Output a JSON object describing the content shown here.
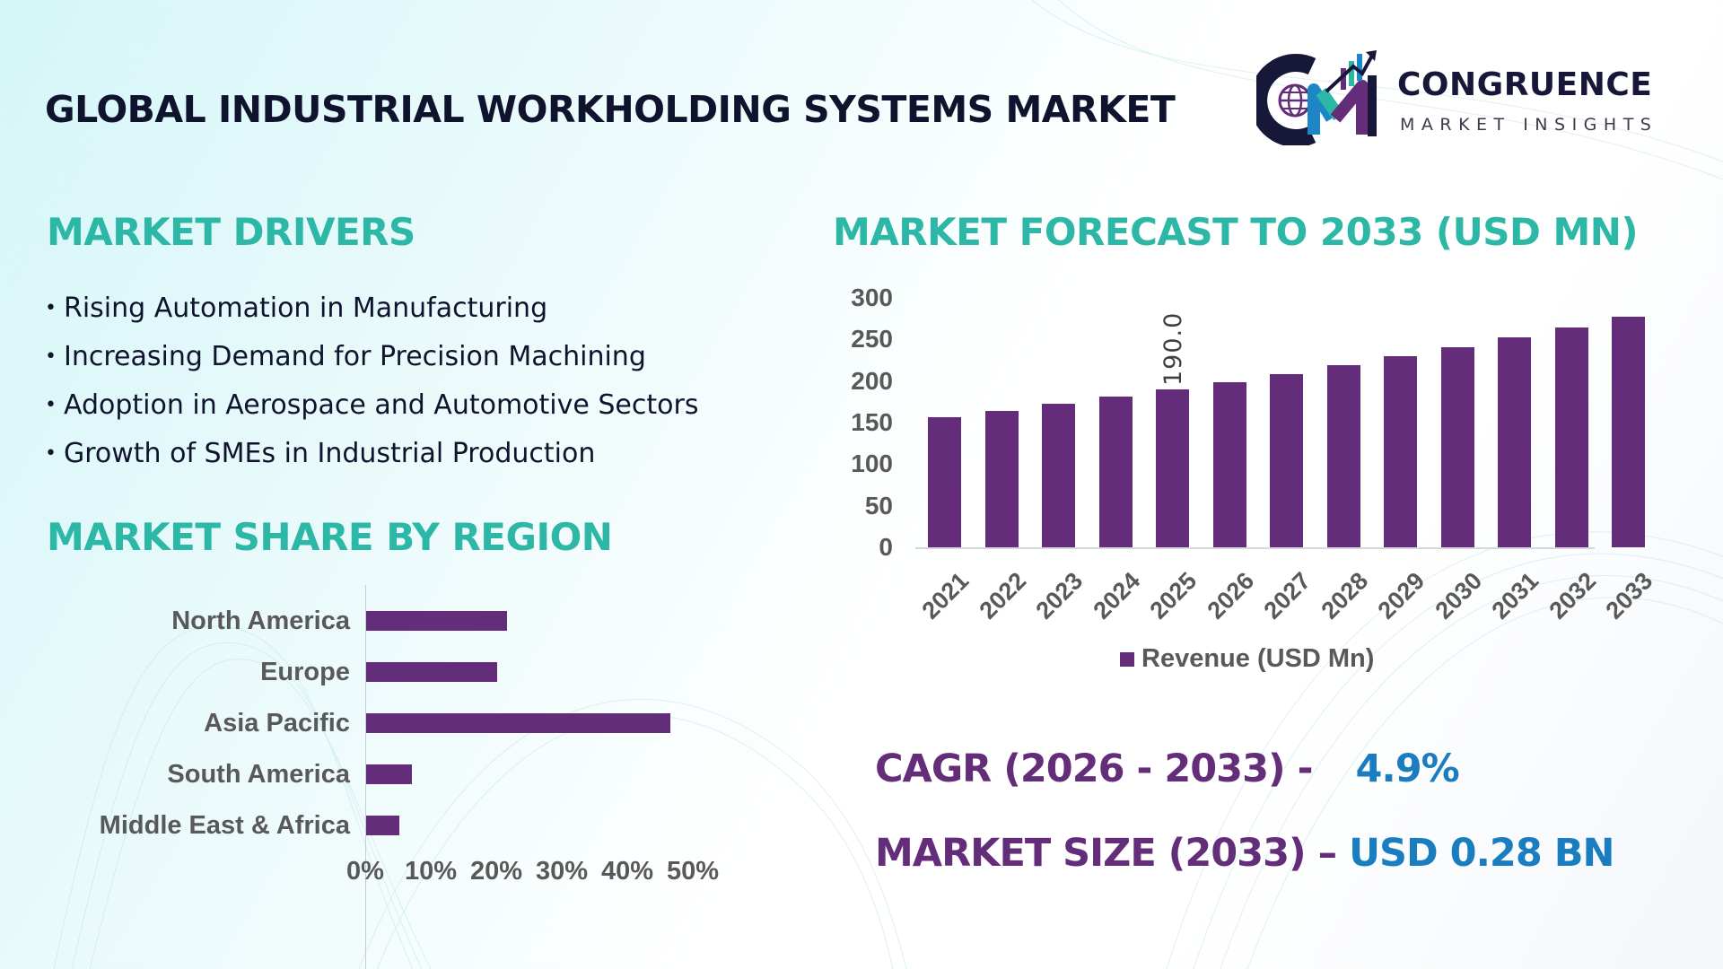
{
  "title": "GLOBAL INDUSTRIAL WORKHOLDING SYSTEMS MARKET",
  "logo": {
    "name": "CONGRUENCE",
    "tagline": "MARKET INSIGHTS",
    "icon": "cm-globe-growth-logo-icon"
  },
  "drivers": {
    "heading": "MARKET DRIVERS",
    "items": [
      "Rising Automation in Manufacturing",
      "Increasing Demand for Precision Machining",
      "Adoption in Aerospace and Automotive Sectors",
      "Growth of SMEs in Industrial Production"
    ]
  },
  "region": {
    "heading": "MARKET SHARE BY REGION"
  },
  "forecast": {
    "heading": "MARKET FORECAST TO 2033 (USD MN)"
  },
  "kpis": {
    "cagr_label": "CAGR (2026 - 2033) -",
    "cagr_value": "4.9%",
    "size_label": "MARKET SIZE (2033) –",
    "size_value": "USD 0.28 BN"
  },
  "colors": {
    "bar": "#632d7a",
    "heading": "#2cb7a6",
    "kpi_value": "#1a7dbf",
    "kpi_label": "#632d7a"
  },
  "chart_data": [
    {
      "type": "bar",
      "orientation": "vertical",
      "title": "MARKET FORECAST TO 2033 (USD MN)",
      "categories": [
        "2021",
        "2022",
        "2023",
        "2024",
        "2025",
        "2026",
        "2027",
        "2028",
        "2029",
        "2030",
        "2031",
        "2032",
        "2033"
      ],
      "series": [
        {
          "name": "Revenue (USD Mn)",
          "values": [
            156,
            164,
            173,
            181,
            190,
            198.5,
            208,
            219,
            230,
            241,
            252,
            264,
            277
          ]
        }
      ],
      "data_labels": [
        {
          "category": "2025",
          "label": "190.0"
        }
      ],
      "yticks": [
        "0",
        "50",
        "100",
        "150",
        "200",
        "250",
        "300"
      ],
      "ylim": [
        0,
        300
      ],
      "xlabel": "",
      "ylabel": "",
      "legend": {
        "position": "bottom",
        "entries": [
          "Revenue (USD Mn)"
        ]
      },
      "grid": false
    },
    {
      "type": "bar",
      "orientation": "horizontal",
      "title": "MARKET SHARE BY REGION",
      "categories": [
        "North America",
        "Europe",
        "Asia Pacific",
        "South America",
        "Middle East & Africa"
      ],
      "values": [
        21.5,
        20,
        46.5,
        7,
        5
      ],
      "unit": "%",
      "xticks": [
        "0%",
        "10%",
        "20%",
        "30%",
        "40%",
        "50%"
      ],
      "xlim": [
        0,
        50
      ],
      "grid": false
    }
  ]
}
